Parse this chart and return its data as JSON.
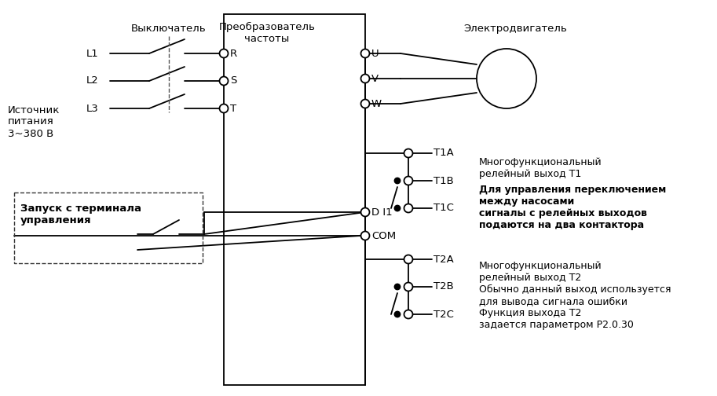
{
  "bg_color": "#ffffff",
  "line_color": "#000000",
  "texts": {
    "source": "Источник\nпитания\n3~380 В",
    "breaker": "Выключатель",
    "converter": "Преобразователь\nчастоты",
    "motor": "Электродвигатель",
    "start": "Запуск с терминала\nуправления",
    "L1": "L1",
    "L2": "L2",
    "L3": "L3",
    "R": "R",
    "S": "S",
    "T": "T",
    "U": "U",
    "V": "V",
    "W": "W",
    "DI1": "D I1",
    "COM": "COM",
    "T1A": "T1A",
    "T1B": "T1B",
    "T1C": "T1C",
    "T2A": "T2A",
    "T2B": "T2B",
    "T2C": "T2C",
    "t1_desc": "Многофункциональный\nрелейный выход T1",
    "t1_bold": "Для управления переключением\nмежду насосами\nсигналы с релейных выходов\nподаются на два контактора",
    "t2_desc": "Многофункциональный\nрелейный выход T2\nОбычно данный выход используется\nдля вывода сигнала ошибки\nФункция выхода T2\nзадается параметром P2.0.30"
  }
}
